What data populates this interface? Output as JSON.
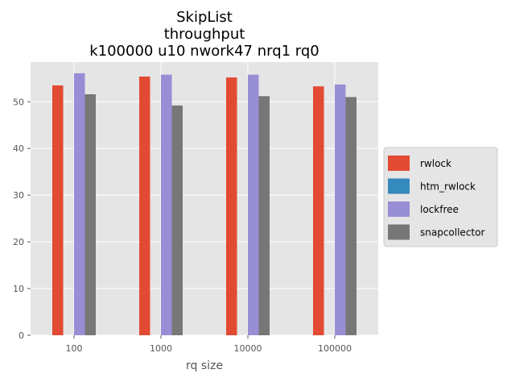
{
  "chart_data": {
    "type": "bar",
    "title": [
      "SkipList",
      "throughput",
      "k100000 u10 nwork47 nrq1 rq0"
    ],
    "xlabel": "rq size",
    "ylabel": "",
    "categories": [
      "100",
      "1000",
      "10000",
      "100000"
    ],
    "ylim": [
      0,
      58.5
    ],
    "yticks": [
      0,
      10,
      20,
      30,
      40,
      50
    ],
    "grid": true,
    "legend_position": "right",
    "series": [
      {
        "name": "rwlock",
        "color": "#E24A33",
        "values": [
          53.5,
          55.4,
          55.2,
          53.3
        ]
      },
      {
        "name": "htm_rwlock",
        "color": "#348ABD",
        "values": [
          0,
          0,
          0,
          0
        ]
      },
      {
        "name": "lockfree",
        "color": "#988ED5",
        "values": [
          56.1,
          55.8,
          55.8,
          53.7
        ]
      },
      {
        "name": "snapcollector",
        "color": "#777777",
        "values": [
          51.6,
          49.2,
          51.2,
          51.0
        ]
      }
    ]
  }
}
